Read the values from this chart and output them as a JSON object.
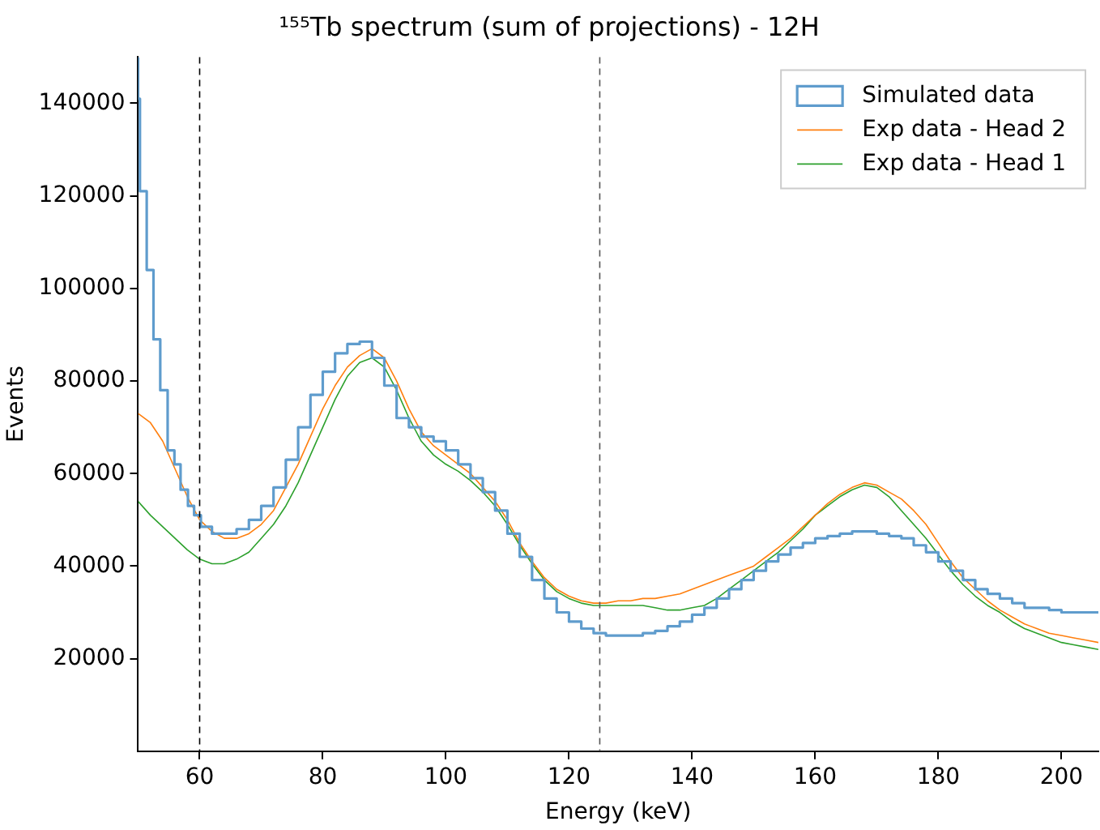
{
  "chart_data": {
    "type": "line",
    "title": "¹⁵⁵Tb spectrum (sum of projections) - 12H",
    "xlabel": "Energy (keV)",
    "ylabel": "Events",
    "xlim": [
      50,
      206
    ],
    "xticks": [
      60,
      80,
      100,
      120,
      140,
      160,
      180,
      200
    ],
    "ylim": [
      0,
      150000
    ],
    "yticks": [
      20000,
      40000,
      60000,
      80000,
      100000,
      120000,
      140000
    ],
    "grid": false,
    "legend": "top right",
    "marker": "none",
    "ref_lines": [
      {
        "axis": "x",
        "value": 60,
        "color": "#000000",
        "line_style": "dashed"
      },
      {
        "axis": "x",
        "value": 125,
        "color": "#555555",
        "line_style": "dashed"
      }
    ],
    "series": [
      {
        "name": "Simulated data",
        "type": "step",
        "color": "#5f9ccd",
        "x": [
          50,
          50.3,
          51.4,
          52.5,
          53.6,
          54.8,
          55.9,
          56.9,
          58.1,
          59.1,
          60.2,
          62,
          64,
          66,
          68,
          70,
          72,
          74,
          76,
          78,
          80,
          82,
          84,
          86,
          88,
          90,
          92,
          94,
          96,
          98,
          100,
          102,
          104,
          106,
          108,
          110,
          112,
          114,
          116,
          118,
          120,
          122,
          124,
          126,
          128,
          130,
          132,
          134,
          136,
          138,
          140,
          142,
          144,
          146,
          148,
          150,
          152,
          154,
          156,
          158,
          160,
          162,
          164,
          166,
          168,
          170,
          172,
          174,
          176,
          178,
          180,
          182,
          184,
          186,
          188,
          190,
          192,
          194,
          196,
          198,
          200,
          202,
          204,
          206
        ],
        "values": [
          150000,
          141000,
          121000,
          104000,
          89000,
          78000,
          65000,
          62000,
          56500,
          53000,
          51000,
          48500,
          47000,
          47000,
          48000,
          50000,
          53000,
          57000,
          63000,
          70000,
          77000,
          82000,
          86000,
          88000,
          88500,
          85000,
          79000,
          72000,
          70000,
          68000,
          67000,
          65000,
          62000,
          59000,
          56000,
          52000,
          47000,
          42000,
          37000,
          33000,
          30000,
          28000,
          26500,
          25500,
          25000,
          25000,
          25000,
          25500,
          26000,
          27000,
          28000,
          29500,
          31000,
          33000,
          35000,
          37000,
          39000,
          41000,
          42500,
          44000,
          45000,
          46000,
          46500,
          47000,
          47500,
          47500,
          47000,
          46500,
          46000,
          44500,
          43000,
          41000,
          39000,
          37000,
          35000,
          34000,
          33000,
          32000,
          31000,
          31000,
          30500,
          30000,
          30000,
          30000
        ]
      },
      {
        "name": "Exp data - Head 2",
        "type": "line",
        "color": "#ff7f0e",
        "x": [
          50,
          52,
          54,
          56,
          58,
          60,
          62,
          64,
          66,
          68,
          70,
          72,
          74,
          76,
          78,
          80,
          82,
          84,
          86,
          88,
          90,
          92,
          94,
          96,
          98,
          100,
          102,
          104,
          106,
          108,
          110,
          112,
          114,
          116,
          118,
          120,
          122,
          124,
          126,
          128,
          130,
          132,
          134,
          136,
          138,
          140,
          142,
          144,
          146,
          148,
          150,
          152,
          154,
          156,
          158,
          160,
          162,
          164,
          166,
          168,
          170,
          172,
          174,
          176,
          178,
          180,
          182,
          184,
          186,
          188,
          190,
          192,
          194,
          196,
          198,
          200,
          202,
          204,
          206
        ],
        "values": [
          73000,
          71000,
          67000,
          61000,
          55000,
          50000,
          47500,
          46000,
          46000,
          47000,
          49000,
          52000,
          57000,
          62000,
          68000,
          74000,
          79000,
          83000,
          85500,
          87000,
          85000,
          80000,
          74000,
          69000,
          66000,
          64000,
          62000,
          60000,
          57000,
          54000,
          50000,
          45000,
          41000,
          37500,
          35000,
          33500,
          32500,
          32000,
          32000,
          32500,
          32500,
          33000,
          33000,
          33500,
          34000,
          35000,
          36000,
          37000,
          38000,
          39000,
          40000,
          42000,
          44000,
          46000,
          48500,
          51000,
          53500,
          55500,
          57000,
          58000,
          57500,
          56000,
          54500,
          52000,
          49000,
          45000,
          41000,
          37500,
          35000,
          32500,
          30500,
          29000,
          27500,
          26500,
          25500,
          25000,
          24500,
          24000,
          23500
        ]
      },
      {
        "name": "Exp data - Head 1",
        "type": "line",
        "color": "#2ca02c",
        "x": [
          50,
          52,
          54,
          56,
          58,
          60,
          62,
          64,
          66,
          68,
          70,
          72,
          74,
          76,
          78,
          80,
          82,
          84,
          86,
          88,
          90,
          92,
          94,
          96,
          98,
          100,
          102,
          104,
          106,
          108,
          110,
          112,
          114,
          116,
          118,
          120,
          122,
          124,
          126,
          128,
          130,
          132,
          134,
          136,
          138,
          140,
          142,
          144,
          146,
          148,
          150,
          152,
          154,
          156,
          158,
          160,
          162,
          164,
          166,
          168,
          170,
          172,
          174,
          176,
          178,
          180,
          182,
          184,
          186,
          188,
          190,
          192,
          194,
          196,
          198,
          200,
          202,
          204,
          206
        ],
        "values": [
          54000,
          51000,
          48500,
          46000,
          43500,
          41500,
          40500,
          40500,
          41500,
          43000,
          46000,
          49000,
          53000,
          58000,
          64000,
          70000,
          76000,
          81000,
          84000,
          85000,
          83000,
          78000,
          72000,
          67000,
          64000,
          62000,
          60500,
          58500,
          56000,
          53000,
          49000,
          44500,
          40500,
          37000,
          34500,
          33000,
          32000,
          31500,
          31500,
          31500,
          31500,
          31500,
          31000,
          30500,
          30500,
          31000,
          31500,
          33000,
          35000,
          37000,
          39000,
          41000,
          43000,
          45500,
          48000,
          51000,
          53000,
          55000,
          56500,
          57500,
          57000,
          55000,
          52000,
          49000,
          46000,
          42500,
          39000,
          36000,
          33500,
          31500,
          30000,
          28000,
          26500,
          25500,
          24500,
          23500,
          23000,
          22500,
          22000
        ]
      }
    ]
  }
}
